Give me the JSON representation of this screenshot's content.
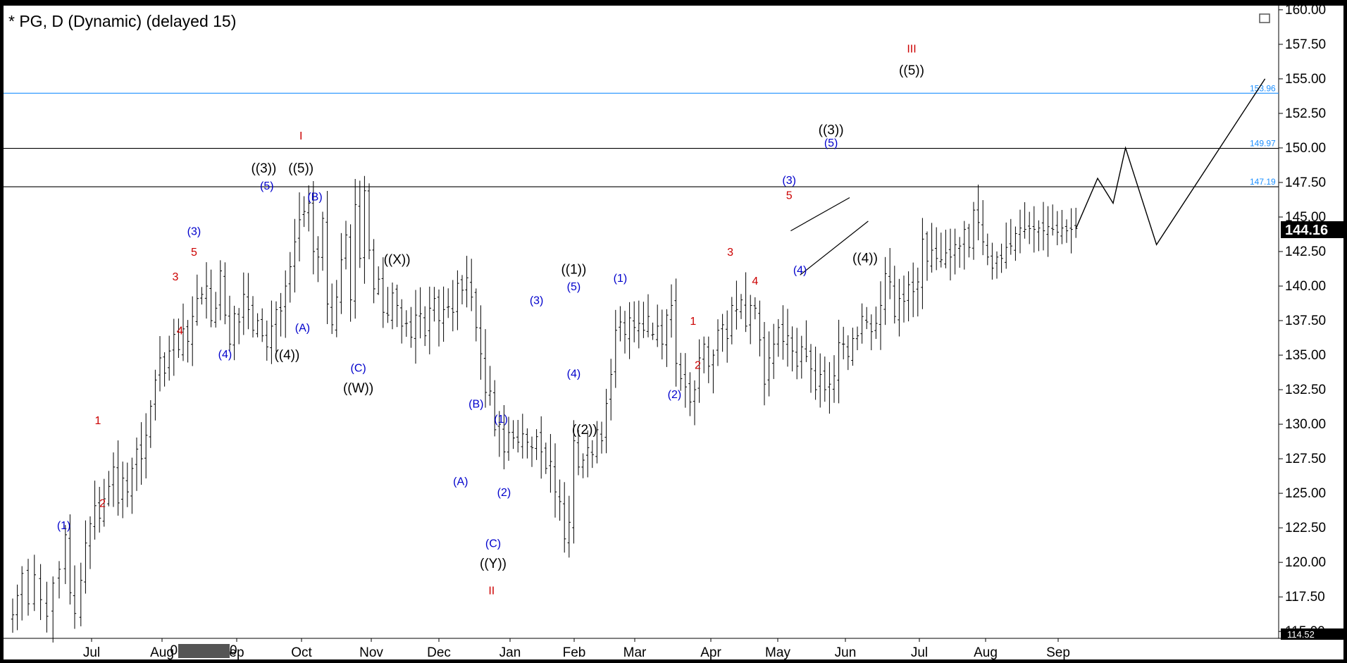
{
  "chart_data": {
    "type": "bar",
    "style": "ohlc",
    "title": "* PG, D (Dynamic) (delayed 15)",
    "x_ticks": [
      "Jul",
      "Aug",
      "08/19/2020",
      "ep",
      "Oct",
      "Nov",
      "Dec",
      "Jan",
      "Feb",
      "Mar",
      "Apr",
      "May",
      "Jun",
      "Jul",
      "Aug",
      "Sep"
    ],
    "y_ticks": [
      "160.00",
      "157.50",
      "155.00",
      "152.50",
      "150.00",
      "147.50",
      "145.00",
      "142.50",
      "140.00",
      "137.50",
      "135.00",
      "132.50",
      "130.00",
      "127.50",
      "125.00",
      "122.50",
      "120.00",
      "117.50",
      "115.00"
    ],
    "ylim": [
      114.5,
      160.3
    ],
    "grid": false,
    "last_price": "144.16",
    "low_marker": "114.52",
    "levels": [
      {
        "value": 153.96,
        "label": "153.96",
        "color": "#1e90ff"
      },
      {
        "value": 149.97,
        "label": "149.97",
        "color": "#000000"
      },
      {
        "value": 147.19,
        "label": "147.19",
        "color": "#000000"
      }
    ],
    "series": [
      {
        "name": "",
        "x": [
          0,
          3,
          6,
          10,
          14,
          18,
          22,
          26,
          30,
          34,
          37,
          40,
          44,
          47,
          50,
          53,
          56,
          59,
          62,
          65,
          68,
          71,
          74,
          77,
          80,
          83,
          86,
          89,
          92,
          95,
          98,
          101,
          104,
          107,
          110,
          113,
          116,
          119,
          122,
          125,
          128,
          131,
          134,
          137,
          140,
          143,
          146,
          149,
          152,
          155,
          158,
          161,
          164,
          167,
          170,
          173,
          176,
          179,
          182,
          185,
          188,
          191,
          194,
          197,
          200,
          203,
          206,
          209,
          212,
          215,
          218,
          221,
          224,
          227,
          230,
          233,
          236,
          239,
          242,
          245,
          248,
          251,
          254,
          257,
          260,
          263,
          266,
          269,
          272,
          275,
          278,
          281,
          284,
          287,
          290,
          293,
          296,
          299,
          302,
          305,
          308,
          311,
          314,
          317,
          320,
          323,
          326,
          329,
          332,
          335,
          338,
          341,
          344,
          347,
          350,
          353,
          356,
          359,
          362,
          365,
          368,
          371,
          374,
          377,
          380,
          383,
          386,
          389,
          392,
          395,
          398,
          401,
          404,
          407,
          410
        ],
        "y": [
          116.2,
          117.6,
          119.2,
          117.0,
          119.1,
          117.3,
          116.1,
          118.5,
          119.5,
          122.0,
          117.8,
          116.3,
          118.7,
          121.4,
          122.8,
          124.1,
          123.2,
          124.6,
          125.5,
          126.9,
          124.3,
          126.1,
          125.1,
          126.8,
          128.2,
          127.5,
          129.2,
          131.3,
          133.2,
          134.8,
          133.7,
          135.3,
          136.5,
          135.4,
          136.9,
          136.0,
          137.8,
          139.1,
          139.4,
          140.0,
          137.5,
          138.4,
          141.1,
          137.9,
          135.8,
          138.0,
          137.4,
          139.4,
          138.3,
          136.8,
          137.5,
          136.4,
          135.6,
          137.1,
          138.3,
          138.2,
          140.0,
          141.4,
          143.2,
          144.8,
          145.4,
          146.0,
          142.5,
          142.1,
          144.9,
          138.7,
          137.2,
          139.2,
          141.9,
          143.7,
          139.0,
          145.9,
          142.0,
          146.9,
          142.6,
          139.8,
          140.5,
          138.1,
          137.9,
          139.5,
          138.6,
          137.1,
          137.3,
          136.3,
          137.9,
          138.0,
          136.4,
          138.4,
          139.1,
          137.5,
          138.3,
          138.5,
          138.1,
          140.2,
          139.7,
          140.6,
          139.2,
          137.0,
          135.1,
          132.3,
          132.4,
          129.6,
          130.0,
          128.0,
          129.4,
          129.0,
          128.7,
          129.3,
          128.7,
          128.3,
          129.1,
          128.0,
          126.8,
          127.3,
          125.1,
          124.4,
          121.7,
          122.9,
          128.8,
          126.9,
          127.4,
          128.3,
          127.8,
          129.6,
          128.8,
          131.5,
          133.6,
          136.8,
          137.4,
          136.5,
          137.7,
          137.0,
          137.3,
          136.8,
          137.8
        ],
        "color": "#000000"
      },
      {
        "name": "",
        "x": [
          413,
          416,
          419,
          422,
          425,
          428,
          431,
          434,
          437,
          440,
          443,
          446,
          449,
          452,
          455,
          458,
          461,
          464,
          467,
          470,
          473,
          476,
          479,
          482,
          485,
          488,
          491,
          494,
          497,
          500,
          503,
          506,
          509,
          512,
          515,
          518,
          521,
          524,
          527,
          530,
          533,
          536,
          539,
          542,
          545,
          548,
          551,
          554,
          557,
          560,
          563,
          566,
          569,
          572,
          575,
          578,
          581,
          584,
          587,
          590,
          593,
          596,
          599,
          602,
          605,
          608,
          611,
          614,
          617,
          620,
          623,
          626,
          629,
          632,
          635,
          638,
          641,
          644,
          647,
          650,
          653,
          656,
          659,
          662,
          665,
          668,
          671,
          674,
          677,
          680,
          683,
          686
        ],
        "y": [
          136.5,
          137.1,
          135.8,
          137.9,
          138.6,
          134.4,
          133.3,
          132.7,
          131.6,
          132.5,
          134.8,
          135.8,
          134.2,
          135.0,
          136.8,
          137.2,
          136.2,
          138.6,
          138.3,
          139.0,
          137.1,
          138.6,
          138.4,
          136.1,
          132.9,
          134.8,
          135.8,
          137.0,
          136.0,
          136.4,
          135.3,
          134.2,
          135.6,
          134.9,
          134.0,
          132.5,
          133.6,
          132.5,
          132.9,
          133.5,
          135.9,
          135.8,
          134.9,
          136.2,
          136.4,
          137.8,
          137.4,
          136.7,
          137.3,
          138.6,
          140.9,
          140.3,
          137.8,
          139.1,
          138.9,
          140.1,
          139.6,
          140.3,
          143.4,
          141.8,
          142.6,
          142.0,
          141.9,
          142.4,
          142.1,
          143.0,
          142.9,
          144.1,
          142.8,
          145.5,
          144.6,
          143.2,
          142.1,
          141.3,
          142.1,
          142.0,
          142.8,
          142.9,
          143.8,
          144.2,
          144.1,
          144.16,
          144.1,
          144.2,
          144.0,
          144.3,
          144.1,
          143.9,
          144.2,
          144.0,
          144.1,
          144.16
        ],
        "color": "#000000"
      }
    ],
    "projection": {
      "x": [
        686,
        700,
        710,
        718,
        738,
        808
      ],
      "y": [
        144.16,
        147.8,
        146.0,
        150.0,
        143.0,
        155.0
      ]
    },
    "annotations": [
      {
        "text": "(1)",
        "color": "#0000cc",
        "x": 33,
        "y": 122.4
      },
      {
        "text": "1",
        "color": "#cc0000",
        "x": 55,
        "y": 130.0
      },
      {
        "text": "2",
        "color": "#cc0000",
        "x": 58,
        "y": 124.0
      },
      {
        "text": "3",
        "color": "#cc0000",
        "x": 105,
        "y": 140.4
      },
      {
        "text": "4",
        "color": "#cc0000",
        "x": 108,
        "y": 136.5
      },
      {
        "text": "(3)",
        "color": "#0000cc",
        "x": 117,
        "y": 143.7
      },
      {
        "text": "5",
        "color": "#cc0000",
        "x": 117,
        "y": 142.2
      },
      {
        "text": "(4)",
        "color": "#0000cc",
        "x": 137,
        "y": 134.8
      },
      {
        "text": "(5)",
        "color": "#0000cc",
        "x": 164,
        "y": 147.0
      },
      {
        "text": "((3))",
        "color": "#000000",
        "x": 162,
        "y": 148.2
      },
      {
        "text": "I",
        "color": "#cc0000",
        "x": 186,
        "y": 150.6
      },
      {
        "text": "((5))",
        "color": "#000000",
        "x": 186,
        "y": 148.2
      },
      {
        "text": "((4))",
        "color": "#000000",
        "x": 177,
        "y": 134.7
      },
      {
        "text": "(B)",
        "color": "#0000cc",
        "x": 195,
        "y": 146.2
      },
      {
        "text": "(A)",
        "color": "#0000cc",
        "x": 187,
        "y": 136.7
      },
      {
        "text": "(C)",
        "color": "#0000cc",
        "x": 223,
        "y": 133.8
      },
      {
        "text": "((W))",
        "color": "#000000",
        "x": 223,
        "y": 132.3
      },
      {
        "text": "((X))",
        "color": "#000000",
        "x": 248,
        "y": 141.6
      },
      {
        "text": "(A)",
        "color": "#0000cc",
        "x": 289,
        "y": 125.6
      },
      {
        "text": "(B)",
        "color": "#0000cc",
        "x": 299,
        "y": 131.2
      },
      {
        "text": "(C)",
        "color": "#0000cc",
        "x": 310,
        "y": 121.1
      },
      {
        "text": "((Y))",
        "color": "#000000",
        "x": 310,
        "y": 119.6
      },
      {
        "text": "II",
        "color": "#cc0000",
        "x": 309,
        "y": 117.7
      },
      {
        "text": "(1)",
        "color": "#0000cc",
        "x": 315,
        "y": 130.1
      },
      {
        "text": "(2)",
        "color": "#0000cc",
        "x": 317,
        "y": 124.8
      },
      {
        "text": "(3)",
        "color": "#0000cc",
        "x": 338,
        "y": 138.7
      },
      {
        "text": "(5)",
        "color": "#0000cc",
        "x": 362,
        "y": 139.7
      },
      {
        "text": "((1))",
        "color": "#000000",
        "x": 362,
        "y": 140.9
      },
      {
        "text": "(4)",
        "color": "#0000cc",
        "x": 362,
        "y": 133.4
      },
      {
        "text": "((2))",
        "color": "#000000",
        "x": 369,
        "y": 129.3
      },
      {
        "text": "(1)",
        "color": "#0000cc",
        "x": 392,
        "y": 140.3
      },
      {
        "text": "(2)",
        "color": "#0000cc",
        "x": 427,
        "y": 131.9
      },
      {
        "text": "1",
        "color": "#cc0000",
        "x": 439,
        "y": 137.2
      },
      {
        "text": "2",
        "color": "#cc0000",
        "x": 442,
        "y": 134.0
      },
      {
        "text": "3",
        "color": "#cc0000",
        "x": 463,
        "y": 142.2
      },
      {
        "text": "4",
        "color": "#cc0000",
        "x": 479,
        "y": 140.1
      },
      {
        "text": "(3)",
        "color": "#0000cc",
        "x": 501,
        "y": 147.4
      },
      {
        "text": "5",
        "color": "#cc0000",
        "x": 501,
        "y": 146.3
      },
      {
        "text": "(4)",
        "color": "#0000cc",
        "x": 508,
        "y": 140.9
      },
      {
        "text": "((3))",
        "color": "#000000",
        "x": 528,
        "y": 151.0
      },
      {
        "text": "(5)",
        "color": "#0000cc",
        "x": 528,
        "y": 150.1
      },
      {
        "text": "((4))",
        "color": "#000000",
        "x": 550,
        "y": 141.7
      },
      {
        "text": "III",
        "color": "#cc0000",
        "x": 580,
        "y": 156.9
      },
      {
        "text": "((5))",
        "color": "#000000",
        "x": 580,
        "y": 155.3
      }
    ]
  }
}
